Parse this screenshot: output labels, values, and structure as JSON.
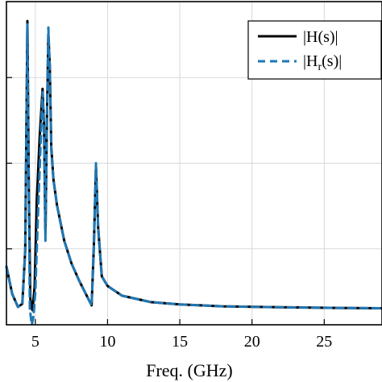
{
  "chart_data": {
    "type": "line",
    "xlabel": "Freq. (GHz)",
    "ylabel": "",
    "title": "",
    "xlim": [
      3,
      29
    ],
    "ylim": [
      0,
      1
    ],
    "xticks": [
      5,
      10,
      15,
      20,
      25
    ],
    "xtick_labels": [
      "5",
      "10",
      "15",
      "20",
      "25"
    ],
    "yticks": [
      0.235,
      0.5,
      0.765
    ],
    "grid": true,
    "legend_position": "top-right",
    "legend": {
      "h_prefix": "|H(s)|",
      "hr_prefix": "|H",
      "hr_sub": "r",
      "hr_suffix": "(s)|"
    },
    "series": [
      {
        "name": "|H(s)|",
        "color": "#000000",
        "style": "solid",
        "x": [
          3.0,
          3.4,
          3.8,
          4.1,
          4.3,
          4.45,
          4.55,
          4.65,
          4.8,
          4.95,
          5.1,
          5.3,
          5.5,
          5.6,
          5.7,
          5.8,
          5.9,
          6.0,
          6.1,
          6.25,
          6.5,
          7.0,
          7.5,
          8.0,
          8.5,
          8.9,
          9.05,
          9.2,
          9.35,
          9.6,
          10.0,
          11.0,
          12.0,
          13.0,
          15.0,
          18.0,
          22.0,
          26.0,
          29.0
        ],
        "y": [
          0.18,
          0.095,
          0.055,
          0.065,
          0.23,
          0.94,
          0.42,
          0.08,
          0.045,
          0.12,
          0.38,
          0.58,
          0.73,
          0.62,
          0.28,
          0.63,
          0.9,
          0.8,
          0.55,
          0.45,
          0.37,
          0.26,
          0.19,
          0.14,
          0.095,
          0.06,
          0.24,
          0.49,
          0.3,
          0.15,
          0.12,
          0.09,
          0.08,
          0.07,
          0.063,
          0.057,
          0.054,
          0.052,
          0.051
        ]
      },
      {
        "name": "|H_r(s)|",
        "color": "#1f77b4",
        "style": "dashed",
        "x": [
          3.0,
          3.4,
          3.8,
          4.1,
          4.3,
          4.45,
          4.55,
          4.62,
          4.75,
          4.85,
          5.0,
          5.2,
          5.5,
          5.6,
          5.7,
          5.8,
          5.9,
          6.0,
          6.1,
          6.25,
          6.5,
          7.0,
          7.5,
          8.0,
          8.5,
          8.9,
          9.05,
          9.2,
          9.35,
          9.6,
          10.0,
          11.0,
          12.0,
          13.0,
          15.0,
          18.0,
          22.0,
          26.0,
          29.0
        ],
        "y": [
          0.18,
          0.095,
          0.055,
          0.065,
          0.23,
          0.93,
          0.4,
          0.05,
          0.0,
          0.02,
          0.1,
          0.36,
          0.72,
          0.6,
          0.26,
          0.62,
          0.92,
          0.79,
          0.54,
          0.45,
          0.37,
          0.26,
          0.19,
          0.14,
          0.095,
          0.06,
          0.24,
          0.5,
          0.3,
          0.15,
          0.12,
          0.09,
          0.08,
          0.07,
          0.063,
          0.057,
          0.054,
          0.052,
          0.051
        ]
      }
    ]
  }
}
